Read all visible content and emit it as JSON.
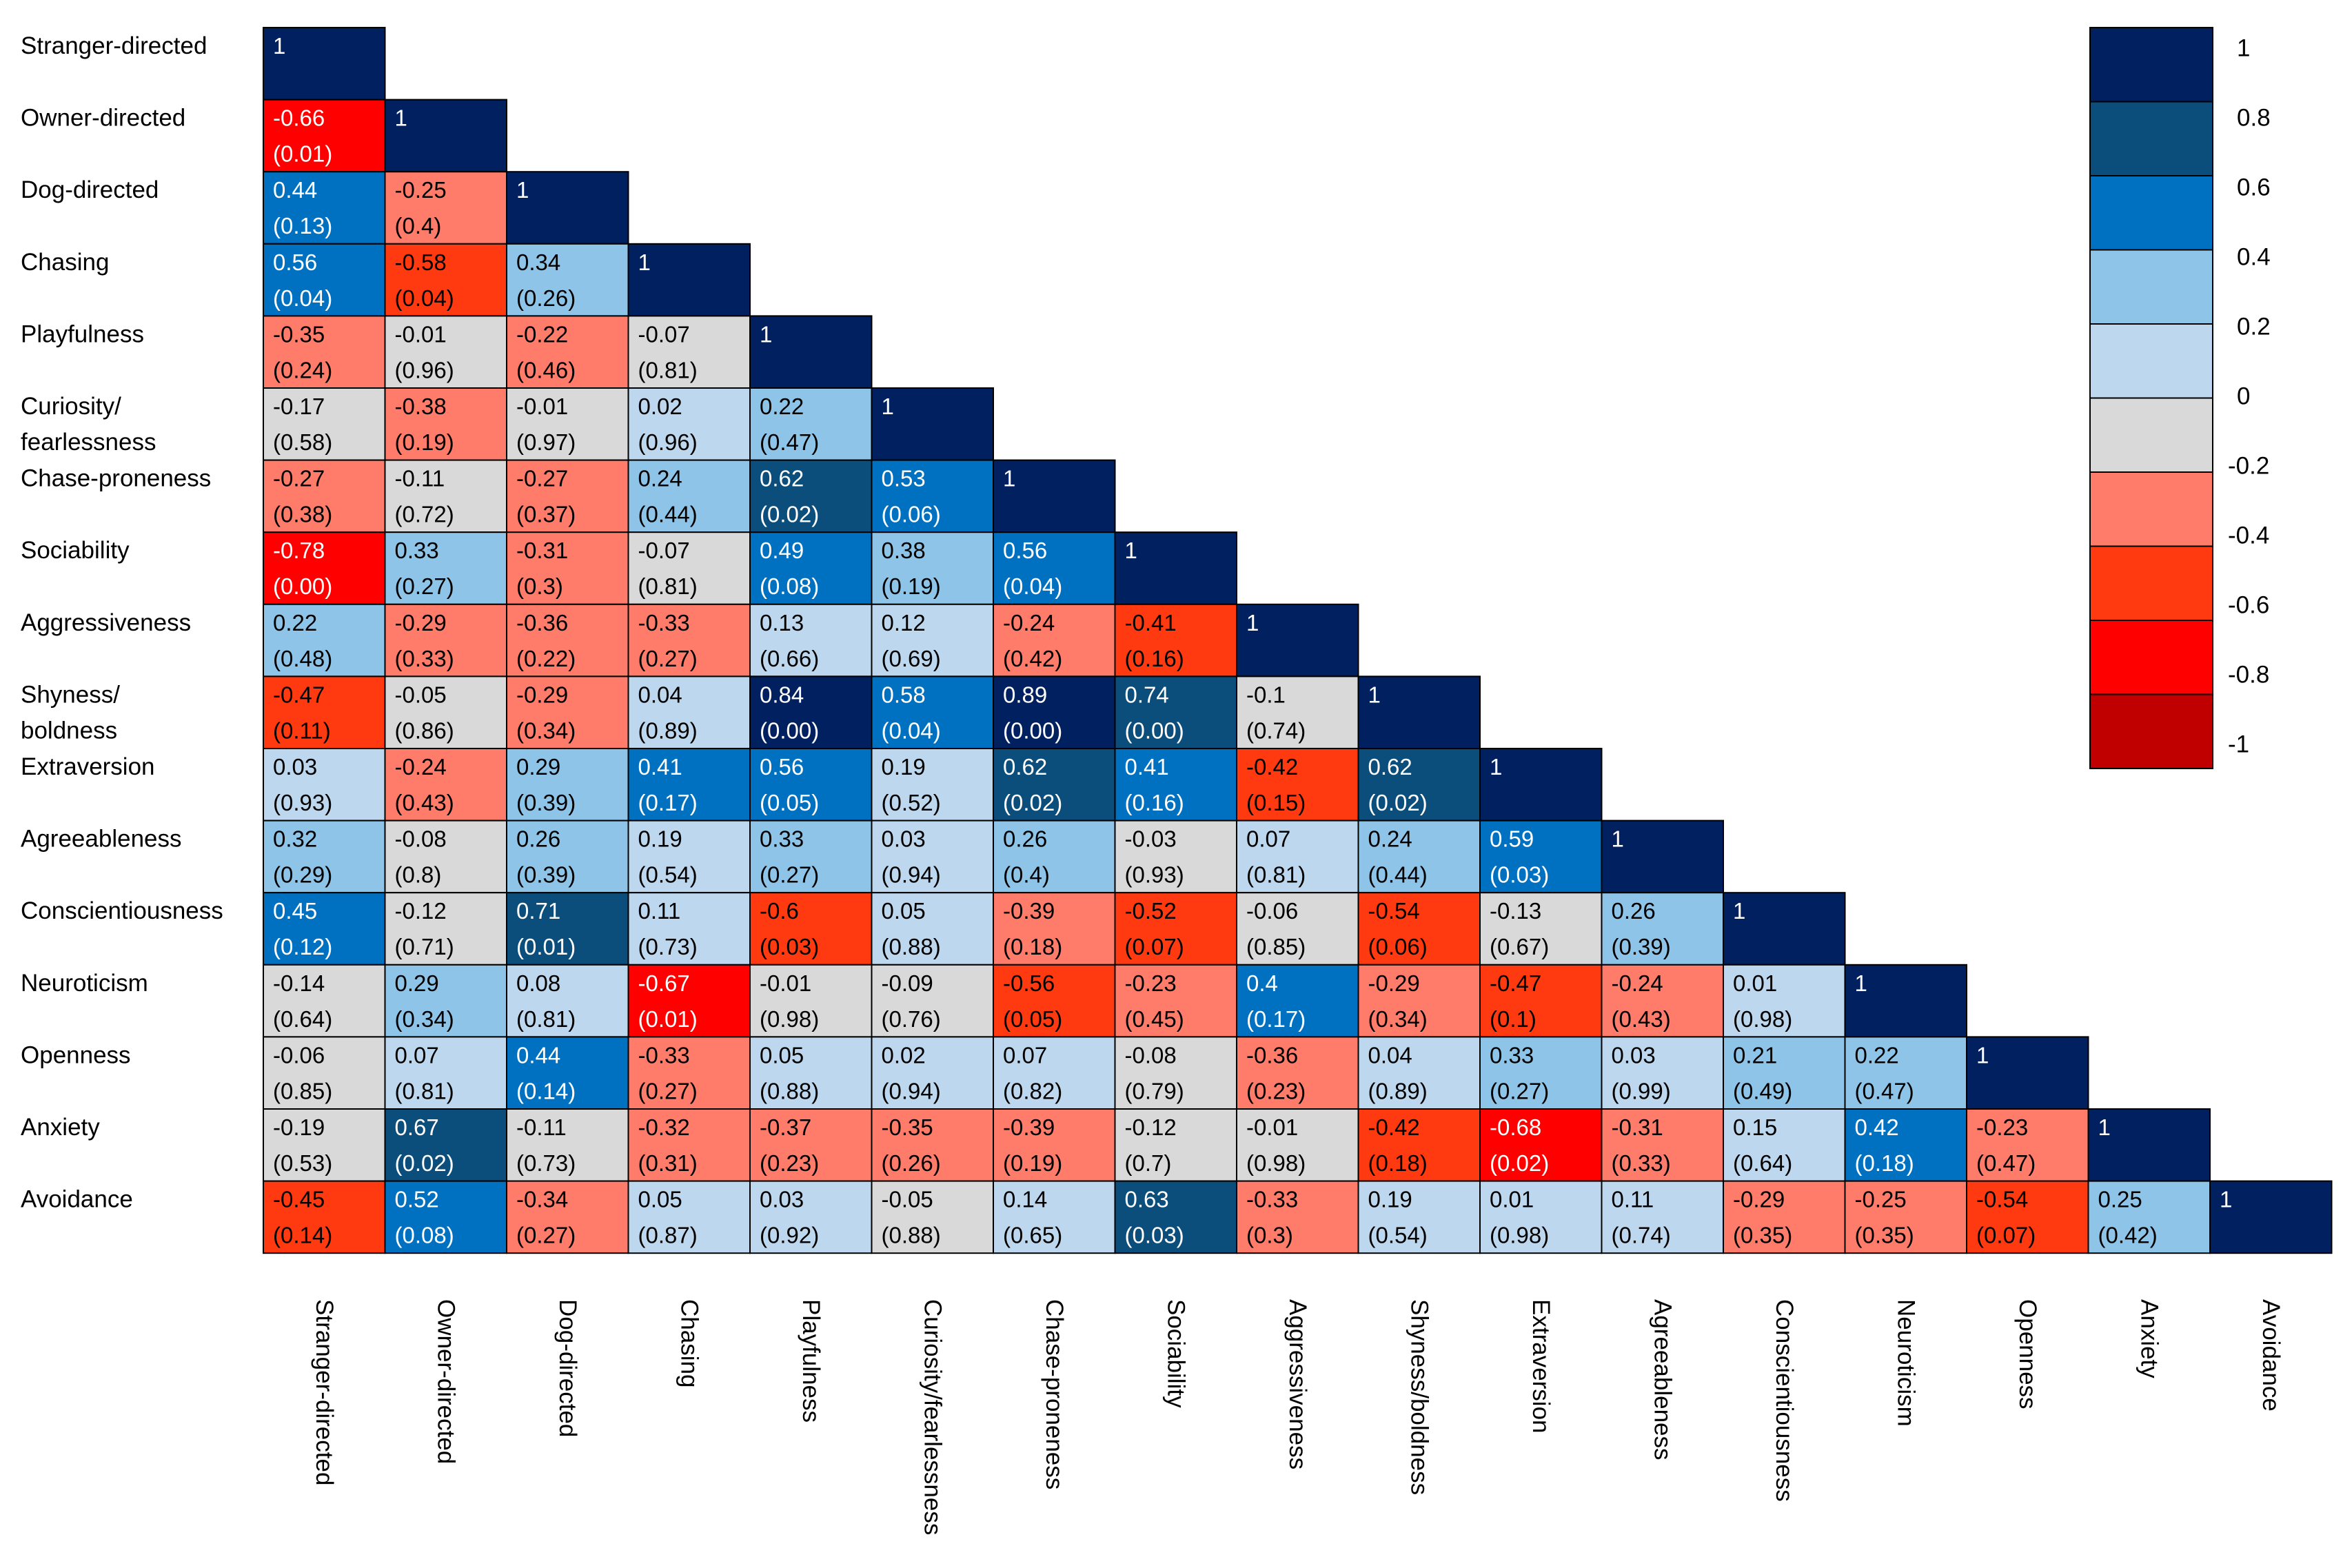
{
  "chart_data": {
    "type": "heatmap",
    "subtype": "lower-triangular correlation matrix",
    "variables": [
      "Stranger-directed",
      "Owner-directed",
      "Dog-directed",
      "Chasing",
      "Playfulness",
      "Curiosity/ fearlessness",
      "Chase-proneness",
      "Sociability",
      "Aggressiveness",
      "Shyness/ boldness",
      "Extraversion",
      "Agreeableness",
      "Conscientiousness",
      "Neuroticism",
      "Openness",
      "Anxiety",
      "Avoidance"
    ],
    "row_labels": [
      [
        "Stranger-directed"
      ],
      [
        "Owner-directed"
      ],
      [
        "Dog-directed"
      ],
      [
        "Chasing"
      ],
      [
        "Playfulness"
      ],
      [
        "Curiosity/",
        "fearlessness"
      ],
      [
        "Chase-proneness"
      ],
      [
        "Sociability"
      ],
      [
        "Aggressiveness"
      ],
      [
        "Shyness/",
        "boldness"
      ],
      [
        "Extraversion"
      ],
      [
        "Agreeableness"
      ],
      [
        "Conscientiousness"
      ],
      [
        "Neuroticism"
      ],
      [
        "Openness"
      ],
      [
        "Anxiety"
      ],
      [
        "Avoidance"
      ]
    ],
    "col_labels": [
      "Stranger-directed",
      "Owner-directed",
      "Dog-directed",
      "Chasing",
      "Playfulness",
      "Curiosity/fearlessness",
      "Chase-proneness",
      "Sociability",
      "Aggressiveness",
      "Shyness/boldness",
      "Extraversion",
      "Agreeableness",
      "Conscientiousness",
      "Neuroticism",
      "Openness",
      "Anxiety",
      "Avoidance"
    ],
    "cells": [
      [
        [
          "1",
          ""
        ]
      ],
      [
        [
          "-0.66",
          "(0.01)"
        ],
        [
          "1",
          ""
        ]
      ],
      [
        [
          "0.44",
          "(0.13)"
        ],
        [
          "-0.25",
          "(0.4)"
        ],
        [
          "1",
          ""
        ]
      ],
      [
        [
          "0.56",
          "(0.04)"
        ],
        [
          "-0.58",
          "(0.04)"
        ],
        [
          "0.34",
          "(0.26)"
        ],
        [
          "1",
          ""
        ]
      ],
      [
        [
          "-0.35",
          "(0.24)"
        ],
        [
          "-0.01",
          "(0.96)"
        ],
        [
          "-0.22",
          "(0.46)"
        ],
        [
          "-0.07",
          "(0.81)"
        ],
        [
          "1",
          ""
        ]
      ],
      [
        [
          "-0.17",
          "(0.58)"
        ],
        [
          "-0.38",
          "(0.19)"
        ],
        [
          "-0.01",
          "(0.97)"
        ],
        [
          "0.02",
          "(0.96)"
        ],
        [
          "0.22",
          "(0.47)"
        ],
        [
          "1",
          ""
        ]
      ],
      [
        [
          "-0.27",
          "(0.38)"
        ],
        [
          "-0.11",
          "(0.72)"
        ],
        [
          "-0.27",
          "(0.37)"
        ],
        [
          "0.24",
          "(0.44)"
        ],
        [
          "0.62",
          "(0.02)"
        ],
        [
          "0.53",
          "(0.06)"
        ],
        [
          "1",
          ""
        ]
      ],
      [
        [
          "-0.78",
          "(0.00)"
        ],
        [
          "0.33",
          "(0.27)"
        ],
        [
          "-0.31",
          "(0.3)"
        ],
        [
          "-0.07",
          "(0.81)"
        ],
        [
          "0.49",
          "(0.08)"
        ],
        [
          "0.38",
          "(0.19)"
        ],
        [
          "0.56",
          "(0.04)"
        ],
        [
          "1",
          ""
        ]
      ],
      [
        [
          "0.22",
          "(0.48)"
        ],
        [
          "-0.29",
          "(0.33)"
        ],
        [
          "-0.36",
          "(0.22)"
        ],
        [
          "-0.33",
          "(0.27)"
        ],
        [
          "0.13",
          "(0.66)"
        ],
        [
          "0.12",
          "(0.69)"
        ],
        [
          "-0.24",
          "(0.42)"
        ],
        [
          "-0.41",
          "(0.16)"
        ],
        [
          "1",
          ""
        ]
      ],
      [
        [
          "-0.47",
          "(0.11)"
        ],
        [
          "-0.05",
          "(0.86)"
        ],
        [
          "-0.29",
          "(0.34)"
        ],
        [
          "0.04",
          "(0.89)"
        ],
        [
          "0.84",
          "(0.00)"
        ],
        [
          "0.58",
          "(0.04)"
        ],
        [
          "0.89",
          "(0.00)"
        ],
        [
          "0.74",
          "(0.00)"
        ],
        [
          "-0.1",
          "(0.74)"
        ],
        [
          "1",
          ""
        ]
      ],
      [
        [
          "0.03",
          "(0.93)"
        ],
        [
          "-0.24",
          "(0.43)"
        ],
        [
          "0.29",
          "(0.39)"
        ],
        [
          "0.41",
          "(0.17)"
        ],
        [
          "0.56",
          "(0.05)"
        ],
        [
          "0.19",
          "(0.52)"
        ],
        [
          "0.62",
          "(0.02)"
        ],
        [
          "0.41",
          "(0.16)"
        ],
        [
          "-0.42",
          "(0.15)"
        ],
        [
          "0.62",
          "(0.02)"
        ],
        [
          "1",
          ""
        ]
      ],
      [
        [
          "0.32",
          "(0.29)"
        ],
        [
          "-0.08",
          "(0.8)"
        ],
        [
          "0.26",
          "(0.39)"
        ],
        [
          "0.19",
          "(0.54)"
        ],
        [
          "0.33",
          "(0.27)"
        ],
        [
          "0.03",
          "(0.94)"
        ],
        [
          "0.26",
          "(0.4)"
        ],
        [
          "-0.03",
          "(0.93)"
        ],
        [
          "0.07",
          "(0.81)"
        ],
        [
          "0.24",
          "(0.44)"
        ],
        [
          "0.59",
          "(0.03)"
        ],
        [
          "1",
          ""
        ]
      ],
      [
        [
          "0.45",
          "(0.12)"
        ],
        [
          "-0.12",
          "(0.71)"
        ],
        [
          "0.71",
          "(0.01)"
        ],
        [
          "0.11",
          "(0.73)"
        ],
        [
          "-0.6",
          "(0.03)"
        ],
        [
          "0.05",
          "(0.88)"
        ],
        [
          "-0.39",
          "(0.18)"
        ],
        [
          "-0.52",
          "(0.07)"
        ],
        [
          "-0.06",
          "(0.85)"
        ],
        [
          "-0.54",
          "(0.06)"
        ],
        [
          "-0.13",
          "(0.67)"
        ],
        [
          "0.26",
          "(0.39)"
        ],
        [
          "1",
          ""
        ]
      ],
      [
        [
          "-0.14",
          "(0.64)"
        ],
        [
          "0.29",
          "(0.34)"
        ],
        [
          "0.08",
          "(0.81)"
        ],
        [
          "-0.67",
          "(0.01)"
        ],
        [
          "-0.01",
          "(0.98)"
        ],
        [
          "-0.09",
          "(0.76)"
        ],
        [
          "-0.56",
          "(0.05)"
        ],
        [
          "-0.23",
          "(0.45)"
        ],
        [
          "0.4",
          "(0.17)"
        ],
        [
          "-0.29",
          "(0.34)"
        ],
        [
          "-0.47",
          "(0.1)"
        ],
        [
          "-0.24",
          "(0.43)"
        ],
        [
          "0.01",
          "(0.98)"
        ],
        [
          "1",
          ""
        ]
      ],
      [
        [
          "-0.06",
          "(0.85)"
        ],
        [
          "0.07",
          "(0.81)"
        ],
        [
          "0.44",
          "(0.14)"
        ],
        [
          "-0.33",
          "(0.27)"
        ],
        [
          "0.05",
          "(0.88)"
        ],
        [
          "0.02",
          "(0.94)"
        ],
        [
          "0.07",
          "(0.82)"
        ],
        [
          "-0.08",
          "(0.79)"
        ],
        [
          "-0.36",
          "(0.23)"
        ],
        [
          "0.04",
          "(0.89)"
        ],
        [
          "0.33",
          "(0.27)"
        ],
        [
          "0.03",
          "(0.99)"
        ],
        [
          "0.21",
          "(0.49)"
        ],
        [
          "0.22",
          "(0.47)"
        ],
        [
          "1",
          ""
        ]
      ],
      [
        [
          "-0.19",
          "(0.53)"
        ],
        [
          "0.67",
          "(0.02)"
        ],
        [
          "-0.11",
          "(0.73)"
        ],
        [
          "-0.32",
          "(0.31)"
        ],
        [
          "-0.37",
          "(0.23)"
        ],
        [
          "-0.35",
          "(0.26)"
        ],
        [
          "-0.39",
          "(0.19)"
        ],
        [
          "-0.12",
          "(0.7)"
        ],
        [
          "-0.01",
          "(0.98)"
        ],
        [
          "-0.42",
          "(0.18)"
        ],
        [
          "-0.68",
          "(0.02)"
        ],
        [
          "-0.31",
          "(0.33)"
        ],
        [
          "0.15",
          "(0.64)"
        ],
        [
          "0.42",
          "(0.18)"
        ],
        [
          "-0.23",
          "(0.47)"
        ],
        [
          "1",
          ""
        ]
      ],
      [
        [
          "-0.45",
          "(0.14)"
        ],
        [
          "0.52",
          "(0.08)"
        ],
        [
          "-0.34",
          "(0.27)"
        ],
        [
          "0.05",
          "(0.87)"
        ],
        [
          "0.03",
          "(0.92)"
        ],
        [
          "-0.05",
          "(0.88)"
        ],
        [
          "0.14",
          "(0.65)"
        ],
        [
          "0.63",
          "(0.03)"
        ],
        [
          "-0.33",
          "(0.3)"
        ],
        [
          "0.19",
          "(0.54)"
        ],
        [
          "0.01",
          "(0.98)"
        ],
        [
          "0.11",
          "(0.74)"
        ],
        [
          "-0.29",
          "(0.35)"
        ],
        [
          "-0.25",
          "(0.35)"
        ],
        [
          "-0.54",
          "(0.07)"
        ],
        [
          "0.25",
          "(0.42)"
        ],
        [
          "1",
          ""
        ]
      ]
    ],
    "legend": {
      "labels": [
        "1",
        "0.8",
        "0.6",
        "0.4",
        "0.2",
        "0",
        "-0.2",
        "-0.4",
        "-0.6",
        "-0.8",
        "-1"
      ],
      "colors": [
        "#002060",
        "#0B4D7B",
        "#0070C0",
        "#8EC4E8",
        "#BDD7EE",
        "#D9D9D9",
        "#FF7C6A",
        "#FF3A10",
        "#FF0000",
        "#C00000"
      ],
      "placement": "top-right"
    },
    "color_bins": [
      {
        "min": 0.8,
        "color": "#002060"
      },
      {
        "min": 0.6,
        "color": "#0B4D7B"
      },
      {
        "min": 0.4,
        "color": "#0070C0"
      },
      {
        "min": 0.2,
        "color": "#8EC4E8"
      },
      {
        "min": 0.0,
        "color": "#BDD7EE"
      },
      {
        "min": -0.2,
        "color": "#D9D9D9"
      },
      {
        "min": -0.4,
        "color": "#FF7C6A"
      },
      {
        "min": -0.6,
        "color": "#FF3A10"
      },
      {
        "min": -0.8,
        "color": "#FF0000"
      },
      {
        "min": -1.0,
        "color": "#C00000"
      }
    ],
    "text_colors": {
      "on_dark": "#FFFFFF",
      "on_light": "#000000"
    }
  }
}
